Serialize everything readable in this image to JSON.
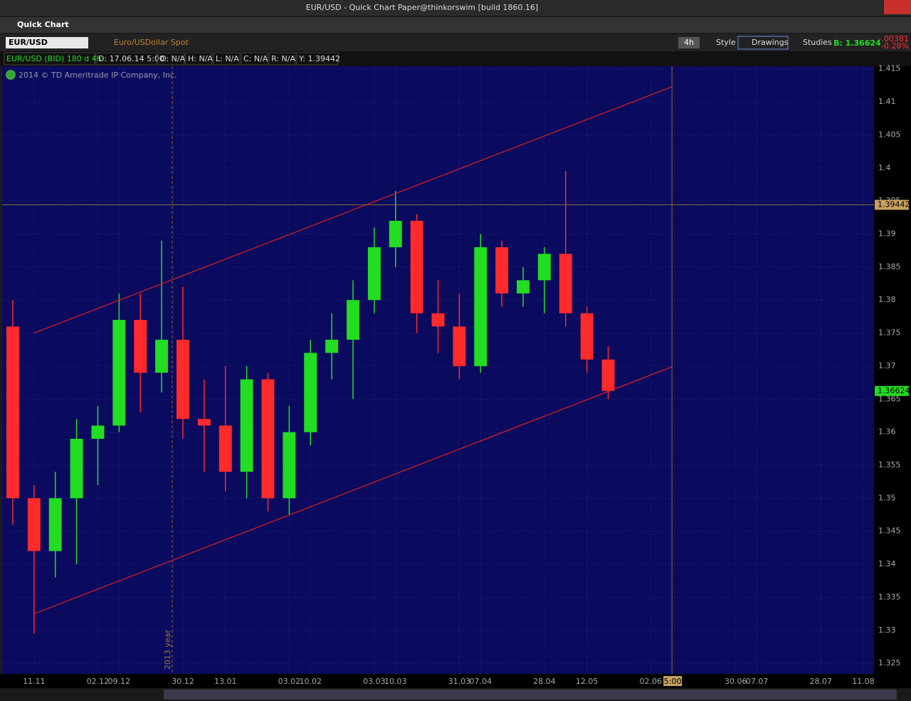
{
  "window": {
    "title": "EUR/USD - Quick Chart Paper@thinkorswim [build 1860.16]",
    "panel": "Quick Chart",
    "symbol": "EUR/USD",
    "description": "Euro/USDollar Spot",
    "timeframe": "4h",
    "buttons": [
      "Style",
      "Drawings",
      "Studies"
    ],
    "bid": "B: 1.36624",
    "change": "-.00381",
    "change_pct": "-0.28%",
    "info": [
      "EUR/USD (BID) 180 d 4h",
      "D: 17.06.14 5:00",
      "O: N/A",
      "H: N/A",
      "L: N/A",
      "C: N/A",
      "R: N/A",
      "Y: 1.39442"
    ],
    "copyright": "2014 © TD Ameritrade IP Company, Inc."
  },
  "chart_data": {
    "type": "candlestick",
    "categories": [
      null,
      "11.11",
      null,
      null,
      "02.12",
      "09.12",
      null,
      null,
      "30.12",
      null,
      "13.01",
      null,
      null,
      "03.02",
      "10.02",
      null,
      null,
      "03.03",
      "10.03",
      null,
      null,
      "31.03",
      "07.04",
      null,
      null,
      "28.04",
      null,
      "12.05",
      null,
      null,
      "02.06",
      "09.0",
      null,
      null,
      "30.06",
      "07.07",
      null,
      null,
      "28.07",
      null,
      "11.08"
    ],
    "open": [
      1.376,
      1.35,
      1.342,
      1.35,
      1.359,
      1.361,
      1.377,
      1.369,
      1.374,
      1.362,
      1.361,
      1.354,
      1.368,
      1.35,
      1.36,
      1.372,
      1.374,
      1.38,
      1.388,
      1.392,
      1.378,
      1.376,
      1.37,
      1.388,
      1.381,
      1.383,
      1.387,
      1.378,
      1.371,
      null,
      null,
      null,
      null,
      null,
      null,
      null,
      null,
      null,
      null,
      null,
      null
    ],
    "high": [
      1.38,
      1.352,
      1.354,
      1.362,
      1.364,
      1.381,
      1.381,
      1.389,
      1.382,
      1.368,
      1.37,
      1.37,
      1.369,
      1.364,
      1.374,
      1.378,
      1.383,
      1.391,
      1.3965,
      1.393,
      1.383,
      1.381,
      1.39,
      1.389,
      1.385,
      1.388,
      1.3995,
      1.379,
      1.373,
      null,
      null,
      null,
      null,
      null,
      null,
      null,
      null,
      null,
      null,
      null,
      null
    ],
    "low": [
      1.346,
      1.3295,
      1.338,
      1.34,
      1.352,
      1.36,
      1.363,
      1.366,
      1.359,
      1.354,
      1.351,
      1.35,
      1.348,
      1.3475,
      1.358,
      1.368,
      1.365,
      1.378,
      1.385,
      1.375,
      1.372,
      1.368,
      1.369,
      1.379,
      1.379,
      1.378,
      1.376,
      1.369,
      1.365,
      null,
      null,
      null,
      null,
      null,
      null,
      null,
      null,
      null,
      null,
      null,
      null
    ],
    "close": [
      1.35,
      1.342,
      1.35,
      1.359,
      1.361,
      1.377,
      1.369,
      1.374,
      1.362,
      1.361,
      1.354,
      1.368,
      1.35,
      1.36,
      1.372,
      1.374,
      1.38,
      1.388,
      1.392,
      1.378,
      1.376,
      1.37,
      1.388,
      1.381,
      1.383,
      1.387,
      1.378,
      1.371,
      1.36624,
      null,
      null,
      null,
      null,
      null,
      null,
      null,
      null,
      null,
      null,
      null,
      null
    ],
    "up_color": "#22dd22",
    "down_color": "#ff2a2a",
    "ylim": [
      1.3234,
      1.4154
    ],
    "yticks": [
      1.325,
      1.33,
      1.335,
      1.34,
      1.345,
      1.35,
      1.355,
      1.36,
      1.365,
      1.37,
      1.375,
      1.38,
      1.385,
      1.39,
      1.395,
      1.4,
      1.405,
      1.41,
      1.415
    ],
    "grid": true,
    "year_label": "2013 year",
    "crosshair_y": 1.39442,
    "crosshair_x_label": "5:00",
    "trendlines": [
      {
        "x": [
          1,
          31
        ],
        "y": [
          1.375,
          1.4123
        ],
        "color": "#e02020"
      },
      {
        "x": [
          1,
          31
        ],
        "y": [
          1.3325,
          1.3699
        ],
        "color": "#e02020"
      }
    ]
  }
}
